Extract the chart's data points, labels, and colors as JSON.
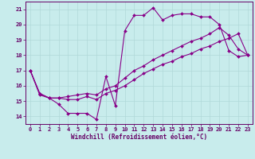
{
  "xlabel": "Windchill (Refroidissement éolien,°C)",
  "background_color": "#c8ecec",
  "grid_color": "#b0d8d8",
  "line_color": "#880088",
  "hours": [
    0,
    1,
    2,
    3,
    4,
    5,
    6,
    7,
    8,
    9,
    10,
    11,
    12,
    13,
    14,
    15,
    16,
    17,
    18,
    19,
    20,
    21,
    22,
    23
  ],
  "series1": [
    17.0,
    15.4,
    15.2,
    14.8,
    14.2,
    14.2,
    14.2,
    13.8,
    16.6,
    14.7,
    19.6,
    20.6,
    20.6,
    21.1,
    20.3,
    20.6,
    20.7,
    20.7,
    20.5,
    20.5,
    20.0,
    18.3,
    17.9,
    18.0
  ],
  "series2": [
    17.0,
    15.5,
    15.2,
    15.2,
    15.1,
    15.1,
    15.3,
    15.1,
    15.5,
    15.7,
    16.0,
    16.4,
    16.8,
    17.1,
    17.4,
    17.6,
    17.9,
    18.1,
    18.4,
    18.6,
    18.9,
    19.1,
    19.4,
    18.0
  ],
  "series3": [
    17.0,
    15.5,
    15.2,
    15.2,
    15.3,
    15.4,
    15.5,
    15.4,
    15.8,
    16.0,
    16.5,
    17.0,
    17.3,
    17.7,
    18.0,
    18.3,
    18.6,
    18.9,
    19.1,
    19.4,
    19.8,
    19.3,
    18.4,
    18.0
  ],
  "ylim": [
    13.5,
    21.5
  ],
  "xlim": [
    -0.5,
    23.5
  ],
  "yticks": [
    14,
    15,
    16,
    17,
    18,
    19,
    20,
    21
  ],
  "xticks": [
    0,
    1,
    2,
    3,
    4,
    5,
    6,
    7,
    8,
    9,
    10,
    11,
    12,
    13,
    14,
    15,
    16,
    17,
    18,
    19,
    20,
    21,
    22,
    23
  ]
}
